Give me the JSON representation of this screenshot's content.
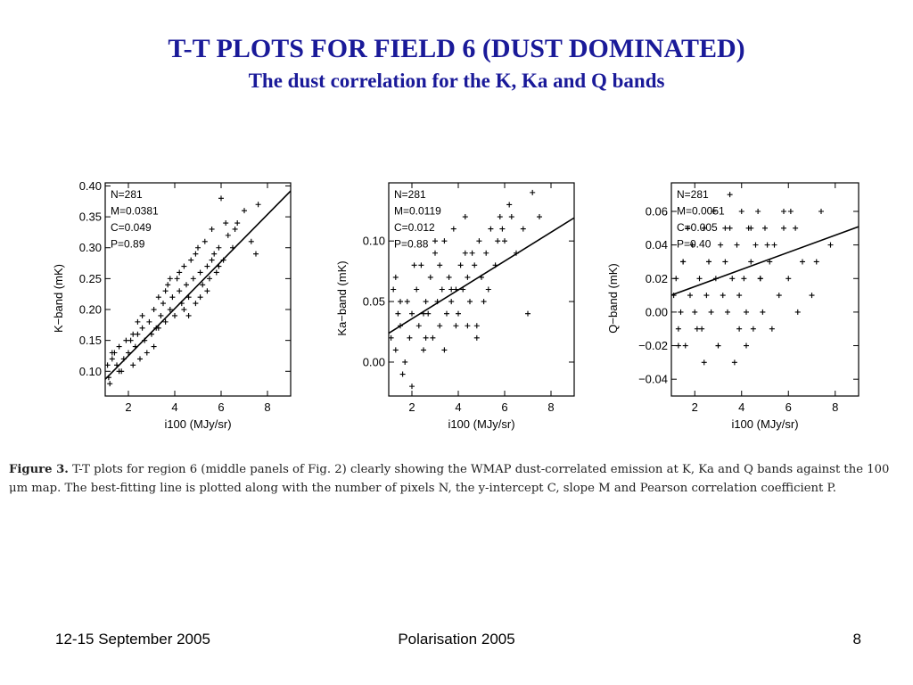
{
  "slide": {
    "title": "T-T PLOTS FOR FIELD 6 (DUST DOMINATED)",
    "subtitle": "The dust correlation for the K, Ka and Q bands"
  },
  "caption": {
    "label": "Figure 3.",
    "text": "T-T plots for region 6 (middle panels of Fig. 2) clearly showing the WMAP dust-correlated emission at K, Ka and Q bands against the 100 μm map. The best-fitting line is plotted along with the number of pixels N, the y-intercept C, slope M and Pearson correlation coefficient P."
  },
  "footer": {
    "left": "12-15 September 2005",
    "center": "Polarisation 2005",
    "right": "8"
  },
  "chart_data": [
    {
      "type": "scatter",
      "xlabel": "i100 (MJy/sr)",
      "ylabel": "K−band (mK)",
      "xlim": [
        1,
        9
      ],
      "ylim": [
        0.06,
        0.405
      ],
      "xticks": [
        2,
        4,
        6,
        8
      ],
      "yticks": [
        0.1,
        0.15,
        0.2,
        0.25,
        0.3,
        0.35,
        0.4
      ],
      "yticklabels": [
        "0.10",
        "0.15",
        "0.20",
        "0.25",
        "0.30",
        "0.35",
        "0.40"
      ],
      "stats": [
        "N=281",
        "M=0.0381",
        "C=0.049",
        "P=0.89"
      ],
      "fit": {
        "slope": 0.0381,
        "intercept": 0.049
      },
      "x": [
        1.1,
        1.2,
        1.3,
        1.15,
        1.4,
        1.5,
        1.6,
        1.8,
        1.7,
        2.0,
        2.1,
        2.2,
        2.3,
        2.4,
        2.5,
        2.6,
        2.7,
        2.8,
        2.9,
        3.0,
        3.1,
        3.2,
        3.3,
        3.4,
        3.5,
        3.6,
        3.7,
        3.8,
        3.9,
        4.0,
        4.1,
        4.2,
        4.3,
        4.4,
        4.5,
        4.6,
        4.7,
        4.8,
        4.9,
        5.0,
        5.1,
        5.2,
        5.3,
        5.4,
        5.5,
        5.6,
        5.7,
        5.8,
        5.9,
        6.0,
        6.1,
        6.3,
        6.5,
        6.7,
        7.0,
        7.3,
        7.6,
        1.3,
        1.6,
        2.2,
        2.6,
        3.1,
        3.6,
        4.2,
        4.6,
        5.1,
        5.6,
        6.2,
        1.9,
        2.4,
        3.3,
        3.8,
        4.4,
        4.9,
        5.4,
        5.9,
        6.6,
        7.5
      ],
      "y": [
        0.11,
        0.08,
        0.12,
        0.09,
        0.13,
        0.11,
        0.14,
        0.12,
        0.1,
        0.13,
        0.15,
        0.11,
        0.14,
        0.16,
        0.12,
        0.17,
        0.15,
        0.13,
        0.18,
        0.16,
        0.2,
        0.17,
        0.22,
        0.19,
        0.21,
        0.18,
        0.24,
        0.2,
        0.22,
        0.19,
        0.25,
        0.23,
        0.21,
        0.27,
        0.24,
        0.22,
        0.28,
        0.25,
        0.21,
        0.3,
        0.26,
        0.24,
        0.31,
        0.27,
        0.25,
        0.33,
        0.29,
        0.26,
        0.3,
        0.38,
        0.28,
        0.32,
        0.3,
        0.34,
        0.36,
        0.31,
        0.37,
        0.13,
        0.1,
        0.16,
        0.19,
        0.14,
        0.23,
        0.26,
        0.19,
        0.22,
        0.28,
        0.34,
        0.15,
        0.18,
        0.17,
        0.25,
        0.2,
        0.29,
        0.23,
        0.27,
        0.33,
        0.29
      ]
    },
    {
      "type": "scatter",
      "xlabel": "i100 (MJy/sr)",
      "ylabel": "Ka−band (mK)",
      "xlim": [
        1,
        9
      ],
      "ylim": [
        -0.028,
        0.148
      ],
      "xticks": [
        2,
        4,
        6,
        8
      ],
      "yticks": [
        0.0,
        0.05,
        0.1
      ],
      "yticklabels": [
        "0.00",
        "0.05",
        "0.10"
      ],
      "stats": [
        "N=281",
        "M=0.0119",
        "C=0.012",
        "P=0.88"
      ],
      "fit": {
        "slope": 0.0119,
        "intercept": 0.012
      },
      "x": [
        1.1,
        1.2,
        1.3,
        1.4,
        1.5,
        1.6,
        1.8,
        1.9,
        2.0,
        2.2,
        2.3,
        2.4,
        2.5,
        2.6,
        2.7,
        2.8,
        2.9,
        3.0,
        3.1,
        3.2,
        3.3,
        3.4,
        3.5,
        3.6,
        3.7,
        3.8,
        3.9,
        4.0,
        4.1,
        4.2,
        4.3,
        4.4,
        4.5,
        4.6,
        4.7,
        4.8,
        4.9,
        5.0,
        5.2,
        5.4,
        5.6,
        5.8,
        6.0,
        6.2,
        6.5,
        6.8,
        7.2,
        7.5,
        1.3,
        1.7,
        2.1,
        2.6,
        3.0,
        3.4,
        3.9,
        4.3,
        4.8,
        5.3,
        5.7,
        6.3,
        1.5,
        2.0,
        2.5,
        3.2,
        3.7,
        4.4,
        5.1,
        5.9,
        7.0
      ],
      "y": [
        0.02,
        0.06,
        0.01,
        0.04,
        0.03,
        -0.01,
        0.05,
        0.02,
        0.04,
        0.06,
        0.03,
        0.08,
        0.01,
        0.05,
        0.04,
        0.07,
        0.02,
        0.09,
        0.05,
        0.03,
        0.06,
        0.1,
        0.04,
        0.07,
        0.05,
        0.11,
        0.06,
        0.04,
        0.08,
        0.06,
        0.12,
        0.07,
        0.05,
        0.09,
        0.08,
        0.03,
        0.1,
        0.07,
        0.09,
        0.11,
        0.08,
        0.12,
        0.1,
        0.13,
        0.09,
        0.11,
        0.14,
        0.12,
        0.07,
        0.0,
        0.08,
        0.02,
        0.1,
        0.01,
        0.03,
        0.09,
        0.02,
        0.06,
        0.1,
        0.12,
        0.05,
        -0.02,
        0.04,
        0.08,
        0.06,
        0.03,
        0.05,
        0.11,
        0.04
      ]
    },
    {
      "type": "scatter",
      "xlabel": "i100 (MJy/sr)",
      "ylabel": "Q−band (mK)",
      "xlim": [
        1,
        9
      ],
      "ylim": [
        -0.05,
        0.077
      ],
      "xticks": [
        2,
        4,
        6,
        8
      ],
      "yticks": [
        -0.04,
        -0.02,
        0.0,
        0.02,
        0.04,
        0.06
      ],
      "yticklabels": [
        "−0.04",
        "−0.02",
        "0.00",
        "0.02",
        "0.04",
        "0.06"
      ],
      "stats": [
        "N=281",
        "M=0.0051",
        "C=0.005",
        "P=0.40"
      ],
      "fit": {
        "slope": 0.0051,
        "intercept": 0.005
      },
      "x": [
        1.1,
        1.2,
        1.3,
        1.4,
        1.5,
        1.6,
        1.8,
        1.9,
        2.0,
        2.2,
        2.3,
        2.4,
        2.5,
        2.6,
        2.7,
        2.8,
        2.9,
        3.0,
        3.1,
        3.2,
        3.3,
        3.4,
        3.5,
        3.6,
        3.7,
        3.8,
        3.9,
        4.0,
        4.1,
        4.2,
        4.3,
        4.4,
        4.5,
        4.6,
        4.7,
        4.8,
        4.9,
        5.0,
        5.2,
        5.4,
        5.6,
        5.8,
        6.0,
        6.3,
        6.6,
        7.0,
        7.4,
        7.8,
        1.3,
        1.7,
        2.1,
        2.6,
        3.0,
        3.5,
        3.9,
        4.4,
        4.8,
        5.3,
        5.8,
        6.4,
        1.5,
        2.4,
        3.3,
        4.2,
        5.1,
        6.1,
        7.2
      ],
      "y": [
        0.01,
        0.02,
        -0.01,
        0.0,
        0.03,
        -0.02,
        0.01,
        0.04,
        0.0,
        0.02,
        -0.01,
        0.05,
        0.01,
        0.03,
        0.0,
        0.06,
        0.02,
        -0.02,
        0.04,
        0.01,
        0.03,
        0.0,
        0.05,
        0.02,
        -0.03,
        0.04,
        0.01,
        0.06,
        0.02,
        0.0,
        0.05,
        0.03,
        -0.01,
        0.04,
        0.06,
        0.02,
        0.0,
        0.05,
        0.03,
        0.04,
        0.01,
        0.06,
        0.02,
        0.05,
        0.03,
        0.01,
        0.06,
        0.04,
        -0.02,
        0.05,
        -0.01,
        0.03,
        -0.02,
        0.07,
        -0.01,
        0.05,
        0.02,
        -0.01,
        0.05,
        0.0,
        0.03,
        -0.03,
        0.05,
        -0.02,
        0.04,
        0.06,
        0.03
      ]
    }
  ]
}
